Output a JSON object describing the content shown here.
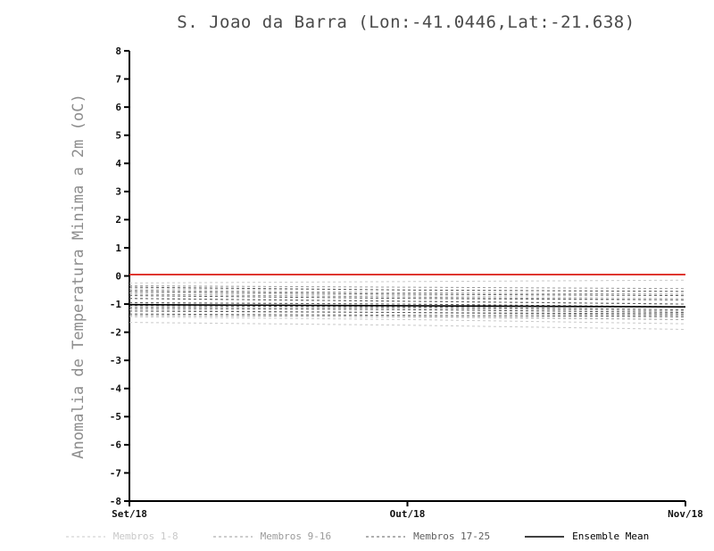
{
  "chart_data": {
    "type": "line",
    "title": "S. Joao da Barra (Lon:-41.0446,Lat:-21.638)",
    "ylabel": "Anomalia de Temperatura Minima a 2m (oC)",
    "xlabel": "",
    "ylim": [
      -8,
      8
    ],
    "ytick_step": 1,
    "x": [
      0,
      1,
      2
    ],
    "x_ticklabels": [
      "Set/18",
      "Out/18",
      "Nov/18"
    ],
    "grid": false,
    "legend_position": "bottom",
    "axis_color": "#000000",
    "reference_line": {
      "value": 0.05,
      "color": "#dd2a22"
    },
    "groups": [
      {
        "name": "Membros 1-8",
        "color": "#c9c9c9",
        "dash": "3 3",
        "members": [
          [
            -0.25,
            -0.2,
            -0.15
          ],
          [
            -0.45,
            -0.5,
            -0.55
          ],
          [
            -0.6,
            -0.7,
            -0.8
          ],
          [
            -0.8,
            -0.9,
            -1.0
          ],
          [
            -1.0,
            -1.1,
            -1.2
          ],
          [
            -1.2,
            -1.3,
            -1.45
          ],
          [
            -1.45,
            -1.55,
            -1.7
          ],
          [
            -1.65,
            -1.75,
            -1.9
          ]
        ]
      },
      {
        "name": "Membros 9-16",
        "color": "#9b9b9b",
        "dash": "3 3",
        "members": [
          [
            -0.35,
            -0.4,
            -0.45
          ],
          [
            -0.5,
            -0.6,
            -0.65
          ],
          [
            -0.65,
            -0.75,
            -0.85
          ],
          [
            -0.8,
            -0.9,
            -1.0
          ],
          [
            -0.95,
            -1.0,
            -1.1
          ],
          [
            -1.1,
            -1.15,
            -1.25
          ],
          [
            -1.25,
            -1.3,
            -1.4
          ],
          [
            -1.4,
            -1.45,
            -1.55
          ]
        ]
      },
      {
        "name": "Membros 17-25",
        "color": "#5f5f5f",
        "dash": "3 3",
        "members": [
          [
            -0.4,
            -0.5,
            -0.55
          ],
          [
            -0.55,
            -0.65,
            -0.7
          ],
          [
            -0.7,
            -0.8,
            -0.85
          ],
          [
            -0.8,
            -0.9,
            -1.0
          ],
          [
            -0.95,
            -1.0,
            -1.1
          ],
          [
            -1.05,
            -1.1,
            -1.2
          ],
          [
            -1.15,
            -1.2,
            -1.3
          ],
          [
            -1.25,
            -1.3,
            -1.35
          ],
          [
            -1.35,
            -1.4,
            -1.45
          ]
        ]
      }
    ],
    "mean": {
      "name": "Ensemble Mean",
      "color": "#000000",
      "values": [
        -1.02,
        -1.06,
        -1.1
      ]
    }
  }
}
